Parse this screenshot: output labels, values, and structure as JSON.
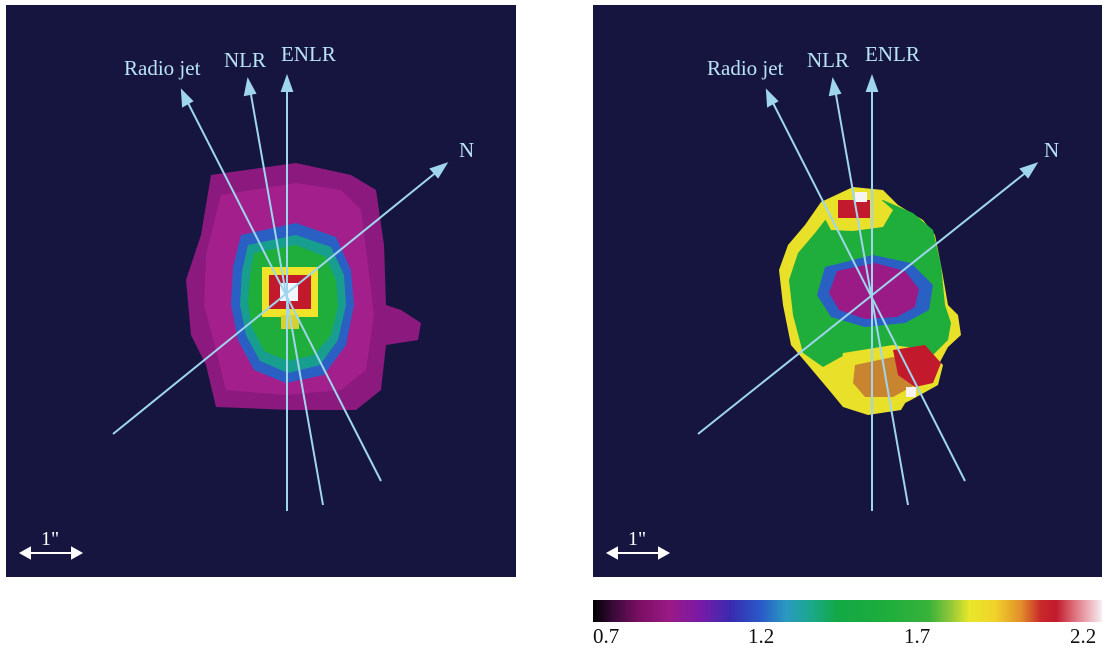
{
  "panels": [
    {
      "labels": {
        "radio_jet": "Radio jet",
        "nlr": "NLR",
        "enlr": "ENLR",
        "north": "N"
      },
      "scale_bar": "1\""
    },
    {
      "labels": {
        "radio_jet": "Radio jet",
        "nlr": "NLR",
        "enlr": "ENLR",
        "north": "N"
      },
      "scale_bar": "1\""
    }
  ],
  "colorbar": {
    "ticks": [
      "0.7",
      "1.2",
      "1.7",
      "2.2"
    ],
    "range": [
      0.7,
      2.2
    ]
  },
  "colors": {
    "background": "#161540",
    "annotation": "#9fd6ee",
    "magenta": "#9a1a86",
    "green": "#1fae3c",
    "yellow": "#f0e82a",
    "red": "#c21a2c"
  }
}
